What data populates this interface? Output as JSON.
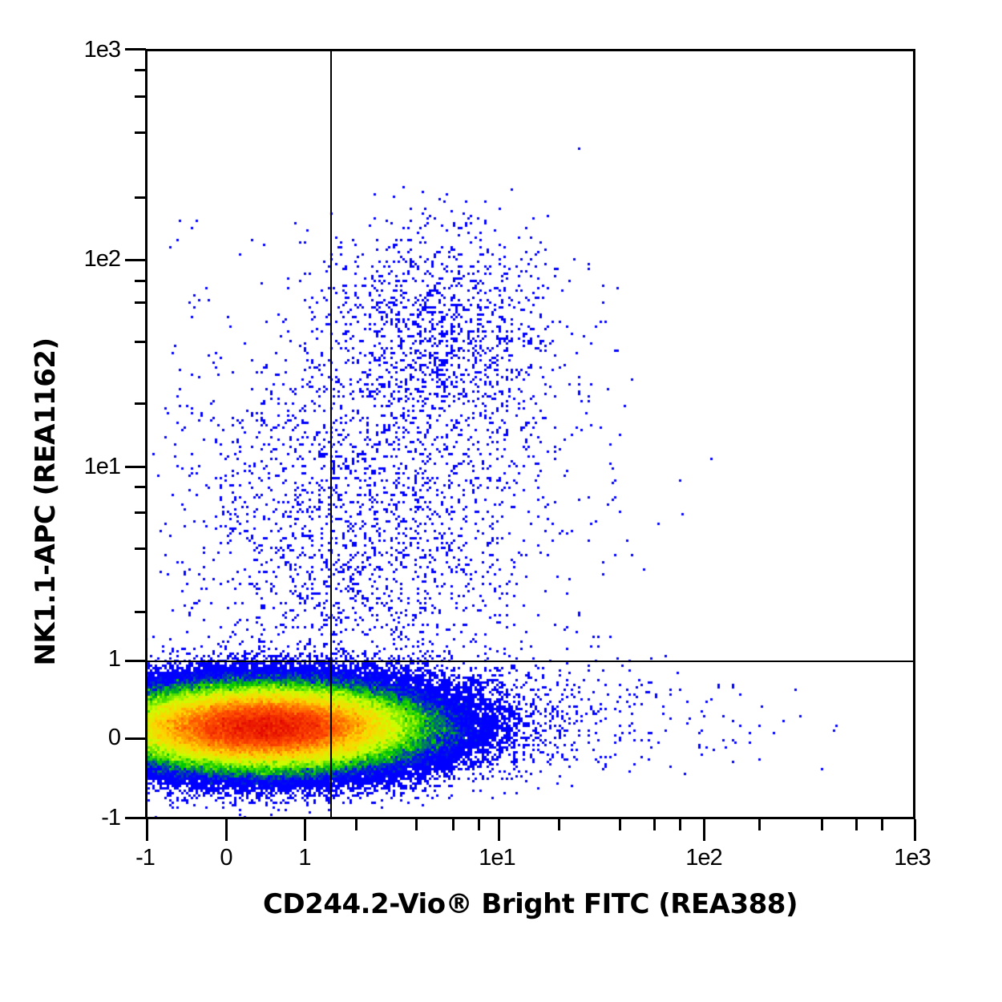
{
  "chart_data": {
    "type": "scatter",
    "subtype": "flow-cytometry-density-dot-plot",
    "title": "",
    "xlabel": "CD244.2-Vio® Bright FITC (REA388)",
    "ylabel": "NK1.1-APC (REA1162)",
    "x_scale": "biexponential",
    "y_scale": "biexponential",
    "xlim": [
      -1,
      1000
    ],
    "ylim": [
      -1,
      1000
    ],
    "x_ticks": [
      {
        "label": "-1",
        "value": -1,
        "major": true
      },
      {
        "label": "0",
        "value": 0,
        "major": true
      },
      {
        "label": "1",
        "value": 1,
        "major": true
      },
      {
        "label": "1e1",
        "value": 10,
        "major": true
      },
      {
        "label": "1e2",
        "value": 100,
        "major": true
      },
      {
        "label": "1e3",
        "value": 1000,
        "major": true
      }
    ],
    "y_ticks": [
      {
        "label": "1e3",
        "value": 1000,
        "major": true
      },
      {
        "label": "1e2",
        "value": 100,
        "major": true
      },
      {
        "label": "1e1",
        "value": 10,
        "major": true
      },
      {
        "label": "1",
        "value": 1,
        "major": true
      },
      {
        "label": "0",
        "value": 0,
        "major": true
      },
      {
        "label": "-1",
        "value": -1,
        "major": true
      }
    ],
    "quadrant_gate": {
      "x": 1.4,
      "y": 1.0
    },
    "populations": [
      {
        "name": "NK1.1- CD244.2- (main negative population)",
        "center_x": 0.6,
        "center_y": 0.1,
        "spread_x": "-1 to ~3",
        "spread_y": "-0.4 to 1",
        "relative_density": "very high"
      },
      {
        "name": "NK1.1+ CD244.2+ (NK cells)",
        "center_x": 5,
        "center_y": 45,
        "spread_x": "~1.5 to ~20",
        "spread_y": "~5 to ~110",
        "relative_density": "low-medium"
      },
      {
        "name": "NK1.1+ CD244.2- scatter",
        "center_x": 0.8,
        "center_y": 3,
        "spread_x": "-1 to 1.4",
        "spread_y": "1 to ~200",
        "relative_density": "low"
      },
      {
        "name": "NK1.1- CD244.2+ tail",
        "center_x": 4,
        "center_y": 0.3,
        "spread_x": "1.4 to ~400",
        "spread_y": "-0.3 to 1",
        "relative_density": "low"
      }
    ],
    "colormap": [
      "#0000ff",
      "#00c800",
      "#c8ff00",
      "#ffd200",
      "#ff5000",
      "#e00000"
    ],
    "grid": false,
    "legend": null
  },
  "axes": {
    "x_title": "CD244.2-Vio® Bright FITC (REA388)",
    "y_title": "NK1.1-APC (REA1162)",
    "x_tick_labels": [
      "-1",
      "0",
      "1",
      "1e1",
      "1e2",
      "1e3"
    ],
    "y_tick_labels": [
      "1e3",
      "1e2",
      "1e1",
      "1",
      "0",
      "-1"
    ]
  }
}
